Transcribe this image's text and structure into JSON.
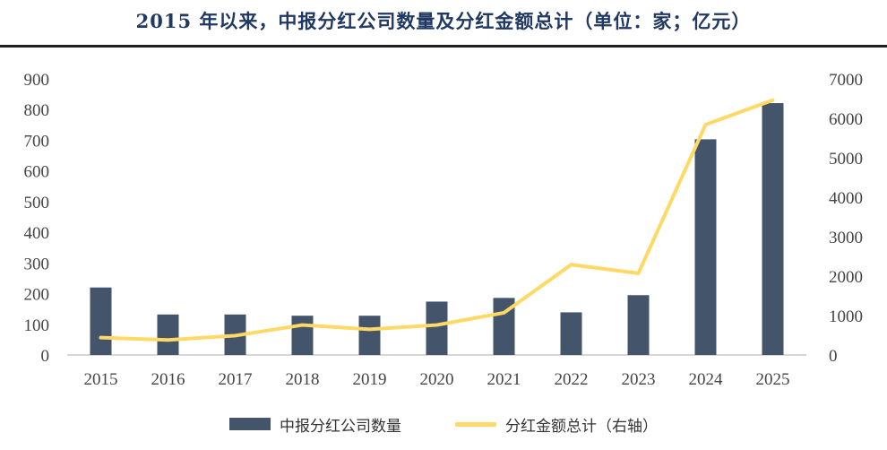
{
  "title": "2015 年以来，中报分红公司数量及分红金额总计（单位：家；亿元）",
  "colors": {
    "bar": "#44546a",
    "line": "#ffd966",
    "axis": "#c8c8c8"
  },
  "legend": {
    "bar_label": "中报分红公司数量",
    "line_label": "分红金额总计（右轴）"
  },
  "chart_data": {
    "type": "bar",
    "categories": [
      "2015",
      "2016",
      "2017",
      "2018",
      "2019",
      "2020",
      "2021",
      "2022",
      "2023",
      "2024",
      "2025"
    ],
    "series": [
      {
        "name": "中报分红公司数量",
        "type": "bar",
        "axis": "left",
        "values": [
          220,
          132,
          132,
          128,
          128,
          174,
          186,
          139,
          195,
          703,
          821
        ]
      },
      {
        "name": "分红金额总计（右轴）",
        "type": "line",
        "axis": "right",
        "values": [
          440,
          380,
          490,
          760,
          650,
          760,
          1070,
          2290,
          2070,
          5840,
          6460
        ]
      }
    ],
    "ylim_left": [
      0,
      900
    ],
    "yticks_left": [
      0,
      100,
      200,
      300,
      400,
      500,
      600,
      700,
      800,
      900
    ],
    "ylim_right": [
      0,
      7000
    ],
    "yticks_right": [
      0,
      1000,
      2000,
      3000,
      4000,
      5000,
      6000,
      7000
    ],
    "grid": false,
    "legend_position": "bottom"
  }
}
